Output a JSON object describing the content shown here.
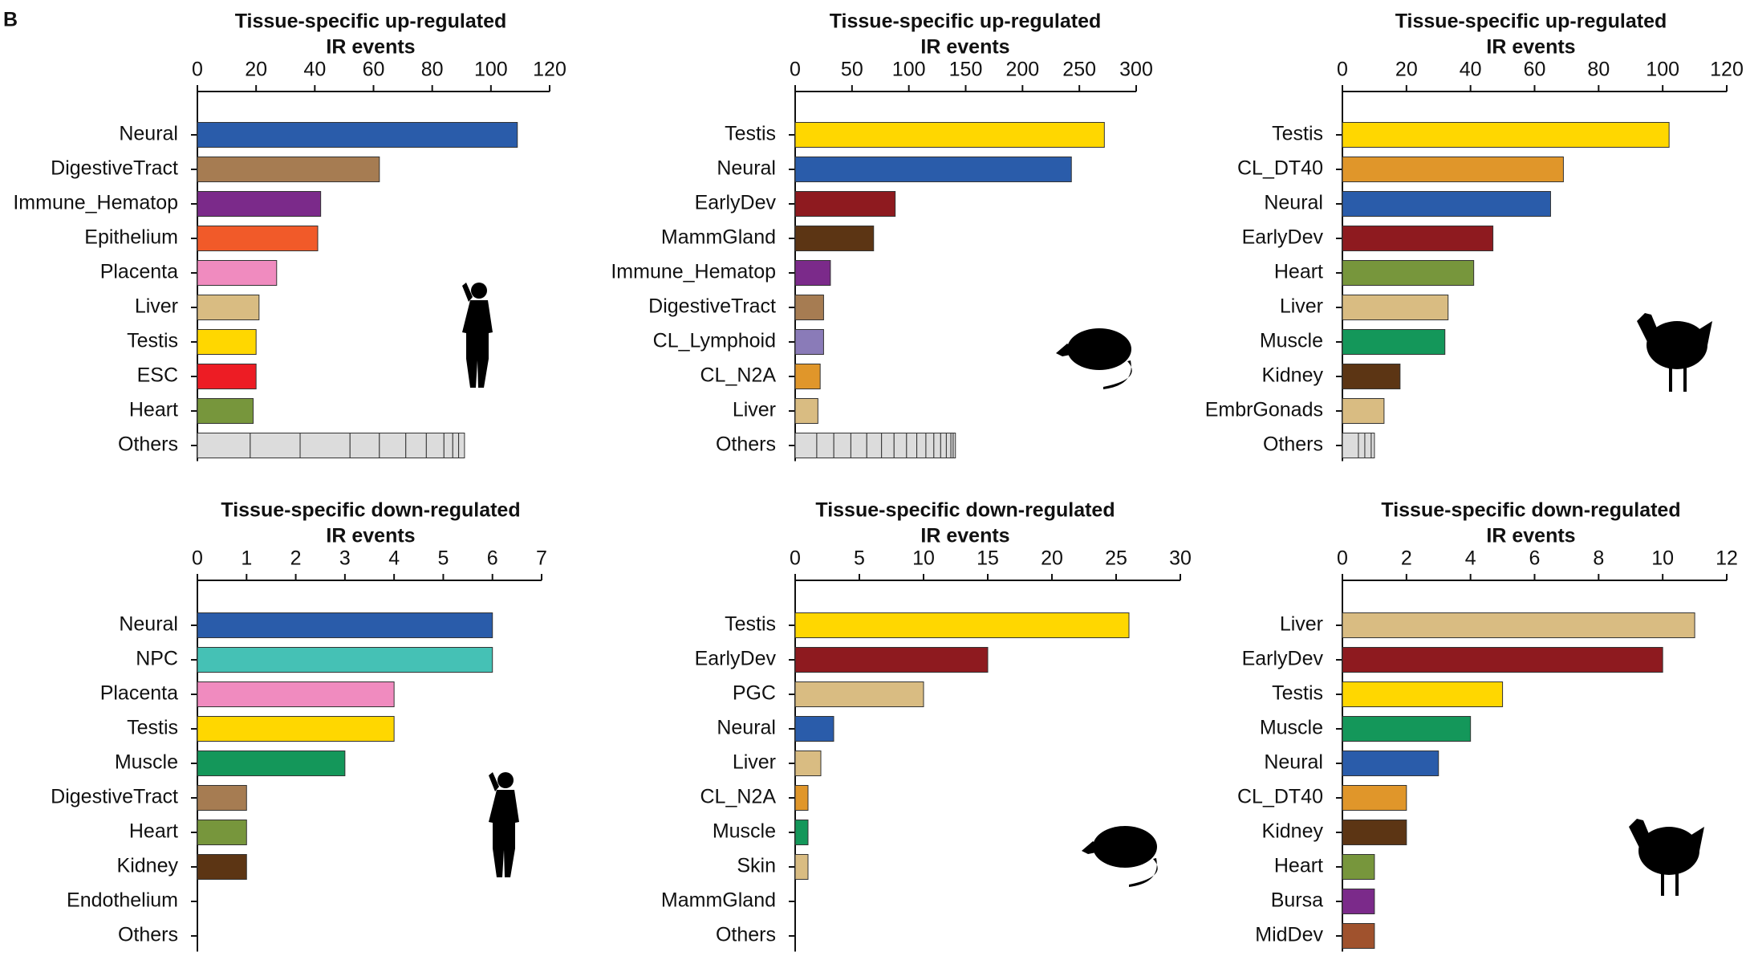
{
  "panel_label": "B",
  "chart_data": [
    {
      "type": "bar",
      "title": [
        "Tissue-specific up-regulated",
        "IR events"
      ],
      "categories": [
        "Neural",
        "DigestiveTract",
        "Immune_Hematop",
        "Epithelium",
        "Placenta",
        "Liver",
        "Testis",
        "ESC",
        "Heart",
        "Others"
      ],
      "values": [
        109,
        62,
        42,
        41,
        27,
        21,
        20,
        20,
        19,
        null
      ],
      "colors": [
        "#2a5caa",
        "#a67c52",
        "#7b2a8a",
        "#f15a29",
        "#f08bbf",
        "#d9bc82",
        "#ffd700",
        "#ed1c24",
        "#77963c",
        "#dcdcdc"
      ],
      "others_segments": [
        18,
        17,
        17,
        10,
        9,
        7,
        6,
        3,
        2,
        2
      ],
      "xlim": [
        0,
        120
      ],
      "xticks": [
        0,
        20,
        40,
        60,
        80,
        100,
        120
      ]
    },
    {
      "type": "bar",
      "title": [
        "Tissue-specific up-regulated",
        "IR events"
      ],
      "categories": [
        "Testis",
        "Neural",
        "EarlyDev",
        "MammGland",
        "Immune_Hematop",
        "DigestiveTract",
        "CL_Lymphoid",
        "CL_N2A",
        "Liver",
        "Others"
      ],
      "values": [
        272,
        243,
        88,
        69,
        31,
        25,
        25,
        22,
        20,
        null
      ],
      "colors": [
        "#ffd700",
        "#2a5caa",
        "#8e1a1f",
        "#5c3514",
        "#7b2a8a",
        "#a67c52",
        "#8a7bb8",
        "#e0962a",
        "#d9bc82",
        "#dcdcdc"
      ],
      "others_segments": [
        19,
        15,
        15,
        14,
        13,
        11,
        11,
        9,
        8,
        7,
        6,
        5,
        4,
        2,
        2
      ],
      "xlim": [
        0,
        300
      ],
      "xticks": [
        0,
        50,
        100,
        150,
        200,
        250,
        300
      ]
    },
    {
      "type": "bar",
      "title": [
        "Tissue-specific up-regulated",
        "IR events"
      ],
      "categories": [
        "Testis",
        "CL_DT40",
        "Neural",
        "EarlyDev",
        "Heart",
        "Liver",
        "Muscle",
        "Kidney",
        "EmbrGonads",
        "Others"
      ],
      "values": [
        102,
        69,
        65,
        47,
        41,
        33,
        32,
        18,
        13,
        null
      ],
      "colors": [
        "#ffd700",
        "#e0962a",
        "#2a5caa",
        "#8e1a1f",
        "#77963c",
        "#d9bc82",
        "#14975a",
        "#5c3514",
        "#d9bc82",
        "#dcdcdc"
      ],
      "others_segments": [
        5,
        2,
        2,
        1
      ],
      "xlim": [
        0,
        120
      ],
      "xticks": [
        0,
        20,
        40,
        60,
        80,
        100,
        120
      ]
    },
    {
      "type": "bar",
      "title": [
        "Tissue-specific down-regulated",
        "IR events"
      ],
      "categories": [
        "Neural",
        "NPC",
        "Placenta",
        "Testis",
        "Muscle",
        "DigestiveTract",
        "Heart",
        "Kidney",
        "Endothelium",
        "Others"
      ],
      "values": [
        6,
        6,
        4,
        4,
        3,
        1,
        1,
        1,
        0,
        0
      ],
      "colors": [
        "#2a5caa",
        "#45c1b5",
        "#f08bbf",
        "#ffd700",
        "#14975a",
        "#a67c52",
        "#77963c",
        "#5c3514",
        "#888888",
        "#dcdcdc"
      ],
      "xlim": [
        0,
        7
      ],
      "xticks": [
        0,
        1,
        2,
        3,
        4,
        5,
        6,
        7
      ]
    },
    {
      "type": "bar",
      "title": [
        "Tissue-specific down-regulated",
        "IR events"
      ],
      "categories": [
        "Testis",
        "EarlyDev",
        "PGC",
        "Neural",
        "Liver",
        "CL_N2A",
        "Muscle",
        "Skin",
        "MammGland",
        "Others"
      ],
      "values": [
        26,
        15,
        10,
        3,
        2,
        1,
        1,
        1,
        0,
        0
      ],
      "colors": [
        "#ffd700",
        "#8e1a1f",
        "#d9bc82",
        "#2a5caa",
        "#d9bc82",
        "#e0962a",
        "#14975a",
        "#d9bc82",
        "#5c3514",
        "#dcdcdc"
      ],
      "xlim": [
        0,
        30
      ],
      "xticks": [
        0,
        5,
        10,
        15,
        20,
        25,
        30
      ]
    },
    {
      "type": "bar",
      "title": [
        "Tissue-specific down-regulated",
        "IR events"
      ],
      "categories": [
        "Liver",
        "EarlyDev",
        "Testis",
        "Muscle",
        "Neural",
        "CL_DT40",
        "Kidney",
        "Heart",
        "Bursa",
        "MidDev"
      ],
      "values": [
        11,
        10,
        5,
        4,
        3,
        2,
        2,
        1,
        1,
        1
      ],
      "colors": [
        "#d9bc82",
        "#8e1a1f",
        "#ffd700",
        "#14975a",
        "#2a5caa",
        "#e0962a",
        "#5c3514",
        "#77963c",
        "#7b2a8a",
        "#a0522d"
      ],
      "xlim": [
        0,
        12
      ],
      "xticks": [
        0,
        2,
        4,
        6,
        8,
        10,
        12
      ]
    }
  ]
}
